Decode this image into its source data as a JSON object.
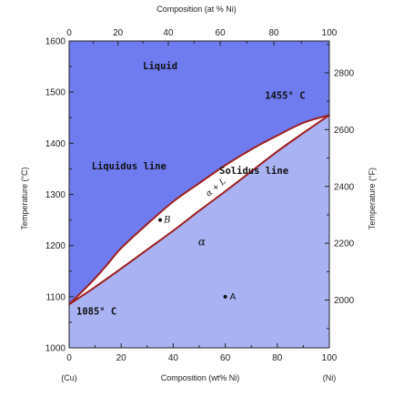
{
  "chart_data": {
    "type": "phase-diagram",
    "top_axis": {
      "title": "Composition (at % Ni)",
      "ticks": [
        0,
        20,
        40,
        60,
        80,
        100
      ]
    },
    "bottom_axis": {
      "title": "Composition (wt% Ni)",
      "ticks": [
        0,
        20,
        40,
        60,
        80,
        100
      ],
      "xlim": [
        0,
        100
      ],
      "left_end_label": "(Cu)",
      "right_end_label": "(Ni)"
    },
    "left_axis": {
      "title": "Temperature (°C)",
      "ticks": [
        1000,
        1100,
        1200,
        1300,
        1400,
        1500,
        1600
      ],
      "ylim": [
        1000,
        1600
      ]
    },
    "right_axis": {
      "title": "Temperature (°F)",
      "ticks": [
        2000,
        2200,
        2400,
        2600,
        2800
      ]
    },
    "liquidus": {
      "wt_pct_Ni": [
        0,
        5,
        10,
        15,
        20,
        30,
        40,
        50,
        60,
        70,
        80,
        90,
        100
      ],
      "temp_C": [
        1085,
        1110,
        1136,
        1165,
        1195,
        1242,
        1286,
        1322,
        1357,
        1388,
        1415,
        1440,
        1455
      ]
    },
    "solidus": {
      "wt_pct_Ni": [
        0,
        10,
        20,
        30,
        40,
        50,
        60,
        70,
        80,
        90,
        100
      ],
      "temp_C": [
        1085,
        1119,
        1155,
        1192,
        1229,
        1268,
        1306,
        1345,
        1384,
        1420,
        1455
      ]
    },
    "regions": [
      {
        "label": "Liquid",
        "wt_pct_Ni": 35,
        "temp_C": 1545
      },
      {
        "label": "α",
        "wt_pct_Ni": 51,
        "temp_C": 1200
      },
      {
        "label": "α + L",
        "wt_pct_Ni": 57,
        "temp_C": 1310
      }
    ],
    "line_labels": [
      {
        "label": "Liquidus line",
        "wt_pct_Ni": 23,
        "temp_C": 1349
      },
      {
        "label": "Solidus line",
        "wt_pct_Ni": 71,
        "temp_C": 1340
      }
    ],
    "annotations": [
      {
        "label": "1455° C",
        "wt_pct_Ni": 83,
        "temp_C": 1487
      },
      {
        "label": "1085° C",
        "wt_pct_Ni": 0,
        "temp_C": 1065
      }
    ],
    "points": [
      {
        "label": "A",
        "wt_pct_Ni": 60,
        "temp_C": 1100
      },
      {
        "label": "B",
        "wt_pct_Ni": 35,
        "temp_C": 1250
      }
    ],
    "colors": {
      "liquid_region": "#6e7cf0",
      "alpha_region": "#a9b2f2",
      "two_phase_region": "#ffffff",
      "phase_boundary": "#9e1d1d",
      "frame": "#222222"
    }
  }
}
